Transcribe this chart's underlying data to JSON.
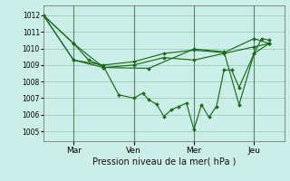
{
  "background_color": "#cceee8",
  "grid_color": "#99ccbb",
  "line_color": "#1a6b1a",
  "xlim": [
    0,
    8.0
  ],
  "ylim": [
    1004.4,
    1012.6
  ],
  "yticks": [
    1005,
    1006,
    1007,
    1008,
    1009,
    1010,
    1011,
    1012
  ],
  "xticks_pos": [
    1,
    3,
    5,
    7
  ],
  "xticks_labels": [
    "Mar",
    "Ven",
    "Mer",
    "Jeu"
  ],
  "xlabel": "Pression niveau de la mer( hPa )",
  "vlines": [
    1,
    3,
    5,
    7
  ],
  "series": [
    {
      "x": [
        0.0,
        1.0,
        1.5,
        2.0,
        2.5,
        3.0,
        3.3,
        3.5,
        3.75,
        4.0,
        4.25,
        4.5,
        4.75,
        5.0,
        5.25,
        5.5,
        5.75,
        6.0,
        6.25,
        6.5,
        7.0,
        7.25,
        7.5
      ],
      "y": [
        1012.0,
        1010.3,
        1009.3,
        1008.9,
        1007.2,
        1007.0,
        1007.3,
        1006.9,
        1006.65,
        1005.9,
        1006.3,
        1006.5,
        1006.7,
        1005.1,
        1006.6,
        1005.85,
        1006.5,
        1008.7,
        1008.7,
        1007.65,
        1009.7,
        1010.6,
        1010.5
      ]
    },
    {
      "x": [
        0.0,
        1.0,
        2.0,
        3.0,
        4.0,
        5.0,
        6.0,
        7.0,
        7.5
      ],
      "y": [
        1012.0,
        1009.3,
        1009.0,
        1009.2,
        1009.7,
        1009.9,
        1009.75,
        1010.6,
        1010.3
      ]
    },
    {
      "x": [
        0.0,
        1.0,
        2.0,
        3.0,
        4.0,
        5.0,
        6.0,
        7.0,
        7.5
      ],
      "y": [
        1012.0,
        1009.3,
        1008.85,
        1009.0,
        1009.45,
        1009.3,
        1009.7,
        1010.1,
        1010.3
      ]
    },
    {
      "x": [
        0.0,
        1.0,
        2.0,
        3.5,
        5.0,
        6.0,
        6.5,
        7.0,
        7.5
      ],
      "y": [
        1012.0,
        1010.3,
        1008.85,
        1008.8,
        1009.97,
        1009.8,
        1006.6,
        1009.7,
        1010.3
      ]
    }
  ]
}
